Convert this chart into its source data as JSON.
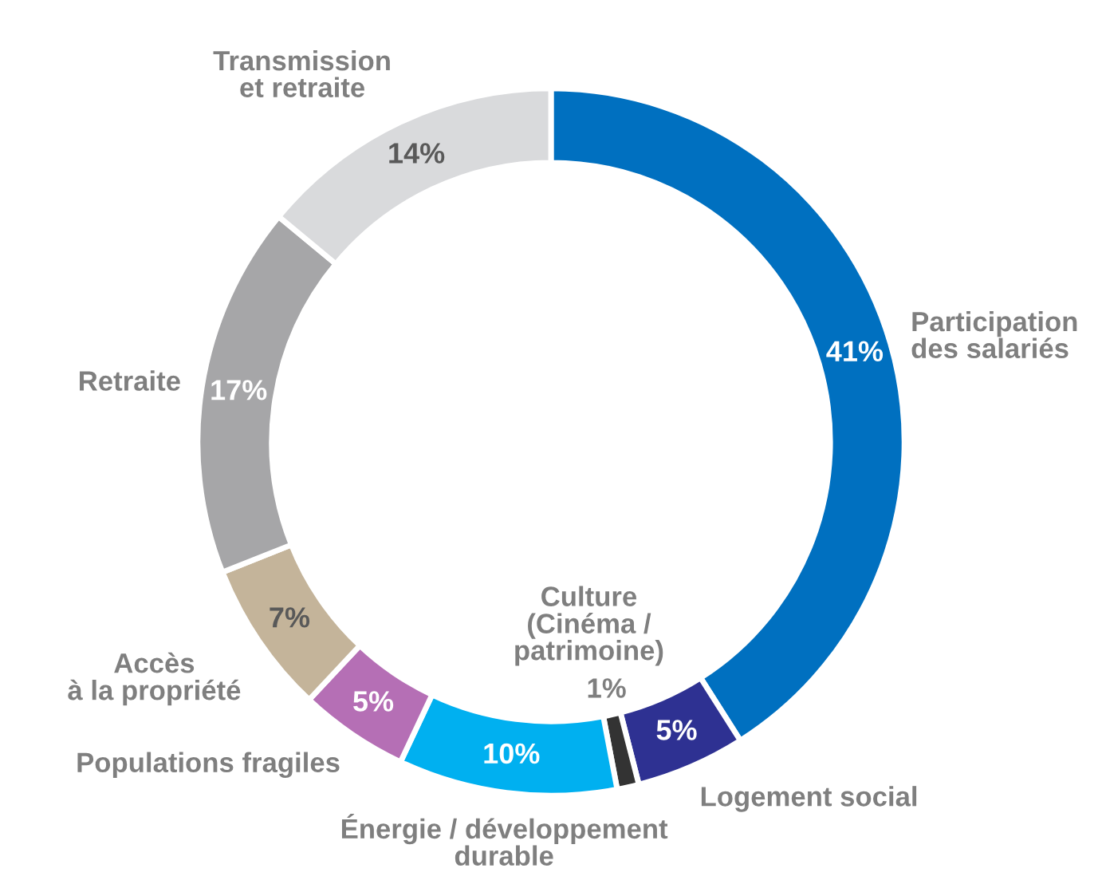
{
  "chart_data": {
    "type": "donut",
    "categories": [
      "Participation\ndes salariés",
      "Logement social",
      "Culture\n(Cinéma /\npatrimoine)",
      "Énergie / développement\ndurable",
      "Populations fragiles",
      "Accès\nà la propriété",
      "Retraite",
      "Transmission\net retraite"
    ],
    "values": [
      41,
      5,
      1,
      10,
      5,
      7,
      17,
      14
    ],
    "colors": [
      "#0070c0",
      "#2e3192",
      "#333333",
      "#00b0f0",
      "#b56fb5",
      "#c4b49a",
      "#a6a6a8",
      "#d9dadc"
    ],
    "value_labels": [
      "41%",
      "5%",
      "1%",
      "10%",
      "5%",
      "7%",
      "17%",
      "14%"
    ],
    "legend": false
  }
}
